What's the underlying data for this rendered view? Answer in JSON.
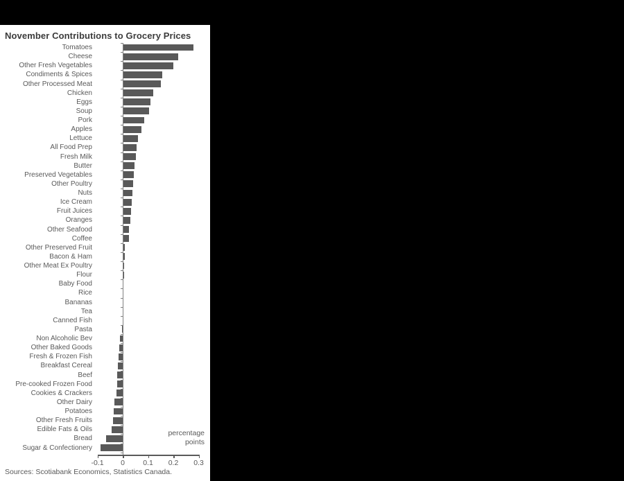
{
  "window": {
    "background_color": "#000000",
    "panel_color": "#ffffff"
  },
  "chart_data": {
    "type": "bar",
    "orientation": "horizontal",
    "title": "November Contributions to Grocery Prices",
    "unit_label_lines": [
      "percentage",
      "points"
    ],
    "source": "Sources: Scotiabank Economics, Statistics Canada.",
    "bar_color": "#595959",
    "text_color": "#595959",
    "title_color": "#3b3b3b",
    "xlim": [
      -0.1,
      0.3
    ],
    "x_ticks": [
      -0.1,
      0,
      0.1,
      0.2,
      0.3
    ],
    "x_tick_labels": [
      "-0.1",
      "0",
      "0.1",
      "0.2",
      "0.3"
    ],
    "grid": false,
    "legend": false,
    "categories": [
      "Tomatoes",
      "Cheese",
      "Other Fresh Vegetables",
      "Condiments & Spices",
      "Other Processed Meat",
      "Chicken",
      "Eggs",
      "Soup",
      "Pork",
      "Apples",
      "Lettuce",
      "All Food Prep",
      "Fresh Milk",
      "Butter",
      "Preserved Vegetables",
      "Other Poultry",
      "Nuts",
      "Ice Cream",
      "Fruit Juices",
      "Oranges",
      "Other Seafood",
      "Coffee",
      "Other Preserved Fruit",
      "Bacon & Ham",
      "Other Meat Ex Poultry",
      "Flour",
      "Baby Food",
      "Rice",
      "Bananas",
      "Tea",
      "Canned Fish",
      "Pasta",
      "Non Alcoholic Bev",
      "Other Baked Goods",
      "Fresh & Frozen Fish",
      "Breakfast Cereal",
      "Beef",
      "Pre-cooked Frozen Food",
      "Cookies & Crackers",
      "Other Dairy",
      "Potatoes",
      "Other Fresh Fruits",
      "Edible Fats & Oils",
      "Bread",
      "Sugar & Confectionery"
    ],
    "values": [
      0.28,
      0.22,
      0.2,
      0.155,
      0.15,
      0.12,
      0.11,
      0.105,
      0.085,
      0.073,
      0.06,
      0.054,
      0.051,
      0.047,
      0.043,
      0.04,
      0.038,
      0.036,
      0.033,
      0.03,
      0.025,
      0.025,
      0.008,
      0.008,
      0.006,
      0.006,
      0.004,
      0.004,
      0.003,
      0.002,
      0.001,
      -0.002,
      -0.01,
      -0.014,
      -0.017,
      -0.019,
      -0.022,
      -0.022,
      -0.025,
      -0.033,
      -0.036,
      -0.039,
      -0.044,
      -0.066,
      -0.088
    ]
  }
}
